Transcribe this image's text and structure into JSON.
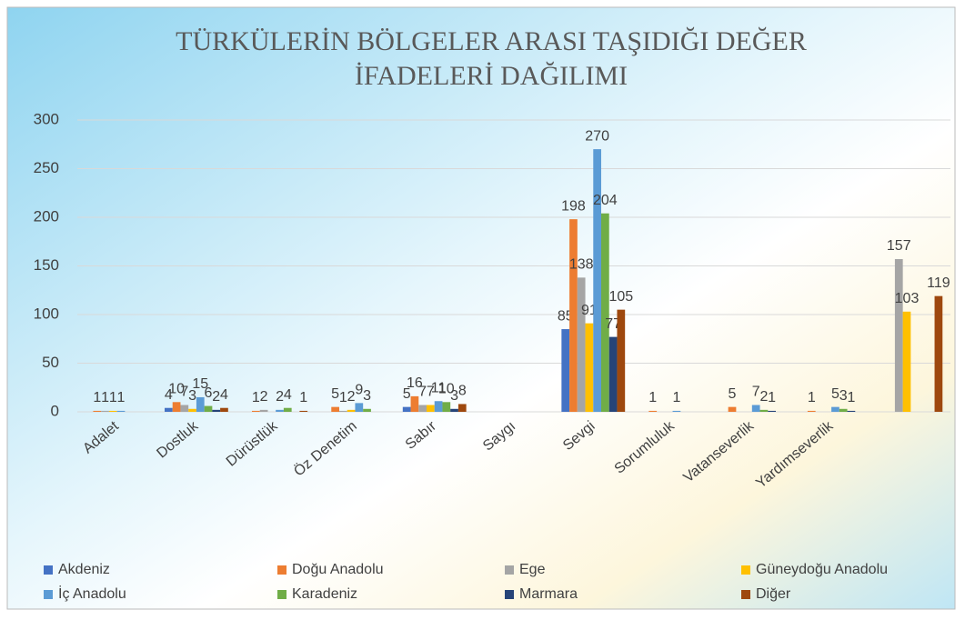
{
  "chart_data": {
    "type": "bar",
    "title": [
      "TÜRKÜLERİN BÖLGELER ARASI TAŞIDIĞI DEĞER",
      "İFADELERİ DAĞILIMI"
    ],
    "categories": [
      "Adalet",
      "Dostluk",
      "Dürüstlük",
      "Öz Denetim",
      "Sabır",
      "Saygı",
      "Sevgi",
      "Sorumluluk",
      "Vatanseverlik",
      "Yardımseverlik",
      null
    ],
    "series": [
      {
        "name": "Akdeniz",
        "color": "#4472c4",
        "values": [
          null,
          4,
          null,
          null,
          5,
          null,
          85,
          null,
          null,
          null,
          null
        ]
      },
      {
        "name": "Doğu Anadolu",
        "color": "#ed7d31",
        "values": [
          1,
          10,
          1,
          5,
          16,
          null,
          198,
          1,
          5,
          1,
          null
        ]
      },
      {
        "name": "Ege",
        "color": "#a5a5a5",
        "values": [
          1,
          7,
          2,
          1,
          7,
          null,
          138,
          null,
          null,
          null,
          157
        ]
      },
      {
        "name": "Güneydoğu Anadolu",
        "color": "#ffc000",
        "values": [
          1,
          3,
          null,
          2,
          7,
          null,
          91,
          null,
          null,
          null,
          103
        ]
      },
      {
        "name": "İç Anadolu",
        "color": "#5b9bd5",
        "values": [
          1,
          15,
          2,
          9,
          11,
          null,
          270,
          1,
          7,
          5,
          null
        ]
      },
      {
        "name": "Karadeniz",
        "color": "#70ad47",
        "values": [
          null,
          6,
          4,
          3,
          10,
          null,
          204,
          null,
          2,
          3,
          null
        ]
      },
      {
        "name": "Marmara",
        "color": "#264478",
        "values": [
          null,
          2,
          null,
          null,
          3,
          null,
          77,
          null,
          1,
          1,
          null
        ]
      },
      {
        "name": "Diğer",
        "color": "#9e480e",
        "values": [
          null,
          4,
          1,
          null,
          8,
          null,
          105,
          null,
          null,
          null,
          119
        ]
      }
    ],
    "ylim": [
      0,
      300
    ],
    "yticks": [
      0,
      50,
      100,
      150,
      200,
      250,
      300
    ],
    "grid": true,
    "legend": "bottom"
  }
}
